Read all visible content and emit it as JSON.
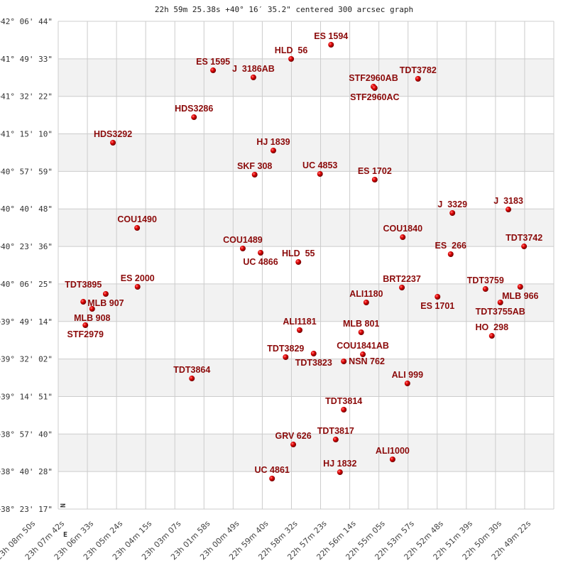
{
  "chart_data": {
    "type": "scatter",
    "title": "22h 59m 25.38s +40° 16′ 35.2\" centered 300 arcsec graph",
    "x_ticks": [
      "23h 08m 50s",
      "23h 07m 42s",
      "23h 06m 33s",
      "23h 05m 24s",
      "23h 04m 15s",
      "23h 03m 07s",
      "23h 01m 58s",
      "23h 00m 49s",
      "22h 59m 40s",
      "22h 58m 32s",
      "22h 57m 23s",
      "22h 56m 14s",
      "22h 55m 05s",
      "22h 53m 57s",
      "22h 52m 48s",
      "22h 51m 39s",
      "22h 50m 30s",
      "22h 49m 22s"
    ],
    "y_ticks": [
      "+42° 06' 44\"",
      "+41° 49' 33\"",
      "+41° 32' 22\"",
      "+41° 15' 10\"",
      "+40° 57' 59\"",
      "+40° 40' 48\"",
      "+40° 23' 36\"",
      "+40° 06' 25\"",
      "+39° 49' 14\"",
      "+39° 32' 02\"",
      "+39° 14' 51\"",
      "+38° 57' 40\"",
      "+38° 40' 28\"",
      "+38° 23' 17\""
    ],
    "xlim": [
      "23h 08m 50s",
      "22h 49m 22s"
    ],
    "ylim": [
      "+38° 23' 17\"",
      "+42° 06' 44\""
    ],
    "grid": true,
    "banded_rows": true,
    "compass": {
      "north": "N",
      "east": "E"
    },
    "point_color": "#dd0000",
    "label_color": "#8b0a0a",
    "points": [
      {
        "name": "ES 1594",
        "ra": "22h 58m 07s",
        "dec": "+41° 56' 00\""
      },
      {
        "name": "HLD  56",
        "ra": "22h 59m 41s",
        "dec": "+41° 49' 30\""
      },
      {
        "name": "ES 1595",
        "ra": "23h 02m 45s",
        "dec": "+41° 44' 17\""
      },
      {
        "name": "J  3186AB",
        "ra": "23h 01m 10s",
        "dec": "+41° 41' 02\""
      },
      {
        "name": "STF2960AB",
        "ra": "22h 56m 27s",
        "dec": "+41° 36' 48\""
      },
      {
        "name": "STF2960AC",
        "ra": "22h 56m 24s",
        "dec": "+41° 36' 10\""
      },
      {
        "name": "TDT3782",
        "ra": "22h 54m 42s",
        "dec": "+41° 40' 23\""
      },
      {
        "name": "HDS3286",
        "ra": "23h 03m 30s",
        "dec": "+41° 22' 49\""
      },
      {
        "name": "HDS3292",
        "ra": "23h 06m 41s",
        "dec": "+41° 11' 07\""
      },
      {
        "name": "HJ 1839",
        "ra": "23h 00m 23s",
        "dec": "+41° 07' 32\""
      },
      {
        "name": "SKF 308",
        "ra": "23h 01m 07s",
        "dec": "+40° 56' 29\""
      },
      {
        "name": "UC 4853",
        "ra": "22h 58m 33s",
        "dec": "+40° 56' 48\""
      },
      {
        "name": "ES 1702",
        "ra": "22h 56m 24s",
        "dec": "+40° 54' 12\""
      },
      {
        "name": "J  3329",
        "ra": "22h 53m 21s",
        "dec": "+40° 38' 55\""
      },
      {
        "name": "J  3183",
        "ra": "22h 51m 09s",
        "dec": "+40° 40' 32\""
      },
      {
        "name": "COU1490",
        "ra": "23h 05m 44s",
        "dec": "+40° 32' 05\""
      },
      {
        "name": "COU1840",
        "ra": "22h 55m 18s",
        "dec": "+40° 27' 51\""
      },
      {
        "name": "TDT3742",
        "ra": "22h 50m 32s",
        "dec": "+40° 23' 37\""
      },
      {
        "name": "COU1489",
        "ra": "23h 01m 35s",
        "dec": "+40° 22' 39\""
      },
      {
        "name": "UC 4866",
        "ra": "23h 00m 53s",
        "dec": "+40° 20' 42\""
      },
      {
        "name": "ES  266",
        "ra": "22h 53m 25s",
        "dec": "+40° 20' 03\""
      },
      {
        "name": "HLD  55",
        "ra": "22h 59m 24s",
        "dec": "+40° 16' 28\""
      },
      {
        "name": "BRT2237",
        "ra": "22h 55m 20s",
        "dec": "+40° 04' 46\""
      },
      {
        "name": "ES 2000",
        "ra": "23h 05m 43s",
        "dec": "+40° 05' 05\""
      },
      {
        "name": "MLB 907",
        "ra": "23h 06m 58s",
        "dec": "+40° 01' 50\""
      },
      {
        "name": "TDT3895",
        "ra": "23h 07m 51s",
        "dec": "+39° 58' 15\""
      },
      {
        "name": "MLB 908",
        "ra": "23h 07m 30s",
        "dec": "+39° 55' 00\""
      },
      {
        "name": "STF2979",
        "ra": "23h 07m 46s",
        "dec": "+39° 47' 31\""
      },
      {
        "name": "ES 1701",
        "ra": "22h 53m 56s",
        "dec": "+40° 00' 32\""
      },
      {
        "name": "TDT3759",
        "ra": "22h 52m 03s",
        "dec": "+40° 04' 06\""
      },
      {
        "name": "MLB 966",
        "ra": "22h 50m 41s",
        "dec": "+40° 05' 05\""
      },
      {
        "name": "TDT3755AB",
        "ra": "22h 51m 28s",
        "dec": "+39° 57' 56\""
      },
      {
        "name": "ALI1180",
        "ra": "22h 56m 44s",
        "dec": "+39° 57' 56\""
      },
      {
        "name": "ALI1181",
        "ra": "22h 59m 21s",
        "dec": "+39° 45' 15\""
      },
      {
        "name": "MLB 801",
        "ra": "22h 56m 56s",
        "dec": "+39° 44' 16\""
      },
      {
        "name": "HO  298",
        "ra": "22h 51m 48s",
        "dec": "+39° 42' 38\""
      },
      {
        "name": "TDT3829",
        "ra": "22h 59m 54s",
        "dec": "+39° 32' 53\""
      },
      {
        "name": "TDT3823",
        "ra": "22h 58m 48s",
        "dec": "+39° 34' 31\""
      },
      {
        "name": "NSN 762",
        "ra": "22h 57m 37s",
        "dec": "+39° 30' 56\""
      },
      {
        "name": "COU1841AB",
        "ra": "22h 56m 52s",
        "dec": "+39° 34' 11\""
      },
      {
        "name": "TDT3864",
        "ra": "23h 03m 35s",
        "dec": "+39° 23' 07\""
      },
      {
        "name": "ALI 999",
        "ra": "22h 55m 07s",
        "dec": "+39° 20' 51\""
      },
      {
        "name": "TDT3814",
        "ra": "22h 57m 37s",
        "dec": "+39° 08' 49\""
      },
      {
        "name": "TDT3817",
        "ra": "22h 57m 56s",
        "dec": "+38° 55' 09\""
      },
      {
        "name": "GRV 626",
        "ra": "22h 59m 36s",
        "dec": "+38° 52' 52\""
      },
      {
        "name": "ALI1000",
        "ra": "22h 55m 42s",
        "dec": "+38° 46' 03\""
      },
      {
        "name": "HJ 1832",
        "ra": "22h 57m 46s",
        "dec": "+38° 40' 11\""
      },
      {
        "name": "UC 4861",
        "ra": "23h 00m 26s",
        "dec": "+38° 37' 16\""
      }
    ]
  }
}
